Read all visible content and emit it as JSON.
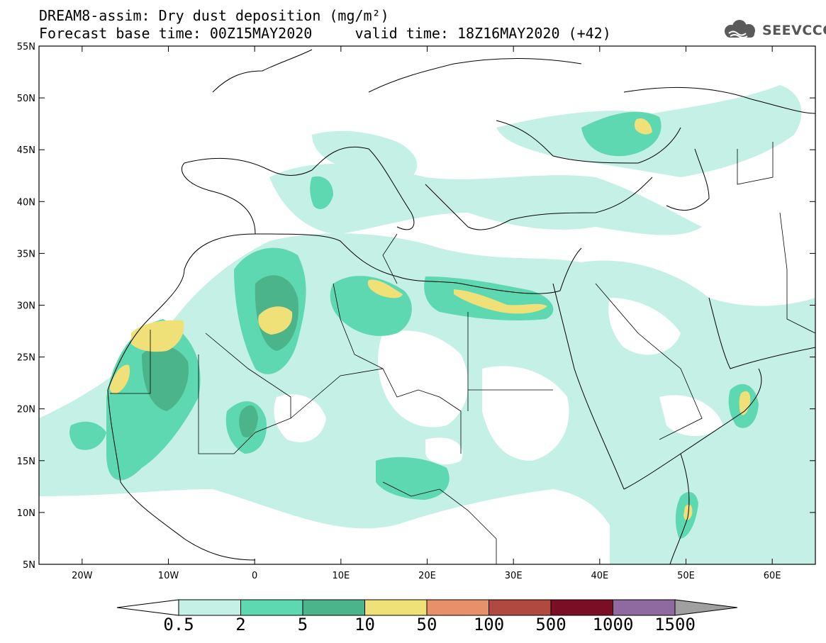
{
  "title": {
    "line1": "DREAM8-assim: Dry dust deposition (mg/m²)",
    "line2": "Forecast base time: 00Z15MAY2020     valid time: 18Z16MAY2020 (+42)"
  },
  "logo": {
    "text": "SEEVCCC",
    "icon": "cloud-icon"
  },
  "map": {
    "lon_range": [
      -25,
      65
    ],
    "lat_range": [
      5,
      55
    ],
    "lat_ticks": [
      "55N",
      "50N",
      "45N",
      "40N",
      "35N",
      "30N",
      "25N",
      "20N",
      "15N",
      "10N",
      "5N"
    ],
    "lon_ticks": [
      "20W",
      "10W",
      "0",
      "10E",
      "20E",
      "30E",
      "40E",
      "50E",
      "60E"
    ]
  },
  "colorbar": {
    "labels": [
      "0.5",
      "2",
      "5",
      "10",
      "50",
      "100",
      "500",
      "1000",
      "1500"
    ],
    "colors": [
      "#c4f0e6",
      "#5ed8b0",
      "#4cb48a",
      "#f0e078",
      "#e8906a",
      "#b04a40",
      "#7a0e24",
      "#8e6aa0",
      "#a0a0a0"
    ]
  },
  "colors": {
    "level1": "#c4f0e6",
    "level2": "#5ed8b0",
    "level3": "#4cb48a",
    "level4": "#f0e078"
  }
}
